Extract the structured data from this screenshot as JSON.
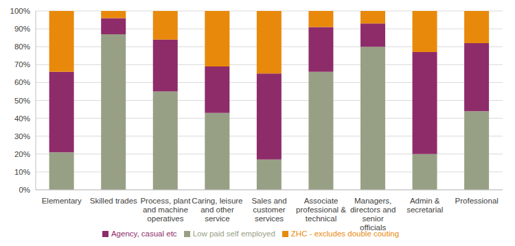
{
  "chart_data": {
    "type": "bar",
    "stacked": true,
    "grid": true,
    "legend": "bottom",
    "categories": [
      "Elementary",
      "Skilled trades",
      "Process, plant and machine operatives",
      "Caring, leisure and other service",
      "Sales and customer services",
      "Associate professional & technical",
      "Managers, directors and senior officials",
      "Admin & secretarial",
      "Professional"
    ],
    "series": [
      {
        "name": "Low paid self employed",
        "color": "#97A085",
        "values": [
          21,
          87,
          55,
          43,
          17,
          66,
          80,
          20,
          44
        ]
      },
      {
        "name": "Agency, casual etc",
        "color": "#8E2C6A",
        "values": [
          45,
          9,
          29,
          26,
          48,
          25,
          13,
          57,
          38
        ]
      },
      {
        "name": "ZHC - excludes double couting",
        "color": "#E8890C",
        "values": [
          34,
          4,
          16,
          31,
          35,
          9,
          7,
          23,
          18
        ]
      }
    ],
    "ylim": [
      0,
      100
    ],
    "yticks": [
      {
        "value": 0,
        "label": "0%"
      },
      {
        "value": 10,
        "label": "10%"
      },
      {
        "value": 20,
        "label": "20%"
      },
      {
        "value": 30,
        "label": "30%"
      },
      {
        "value": 40,
        "label": "40%"
      },
      {
        "value": 50,
        "label": "50%"
      },
      {
        "value": 60,
        "label": "60%"
      },
      {
        "value": 70,
        "label": "70%"
      },
      {
        "value": 80,
        "label": "80%"
      },
      {
        "value": 90,
        "label": "90%"
      },
      {
        "value": 100,
        "label": "100%"
      }
    ]
  }
}
